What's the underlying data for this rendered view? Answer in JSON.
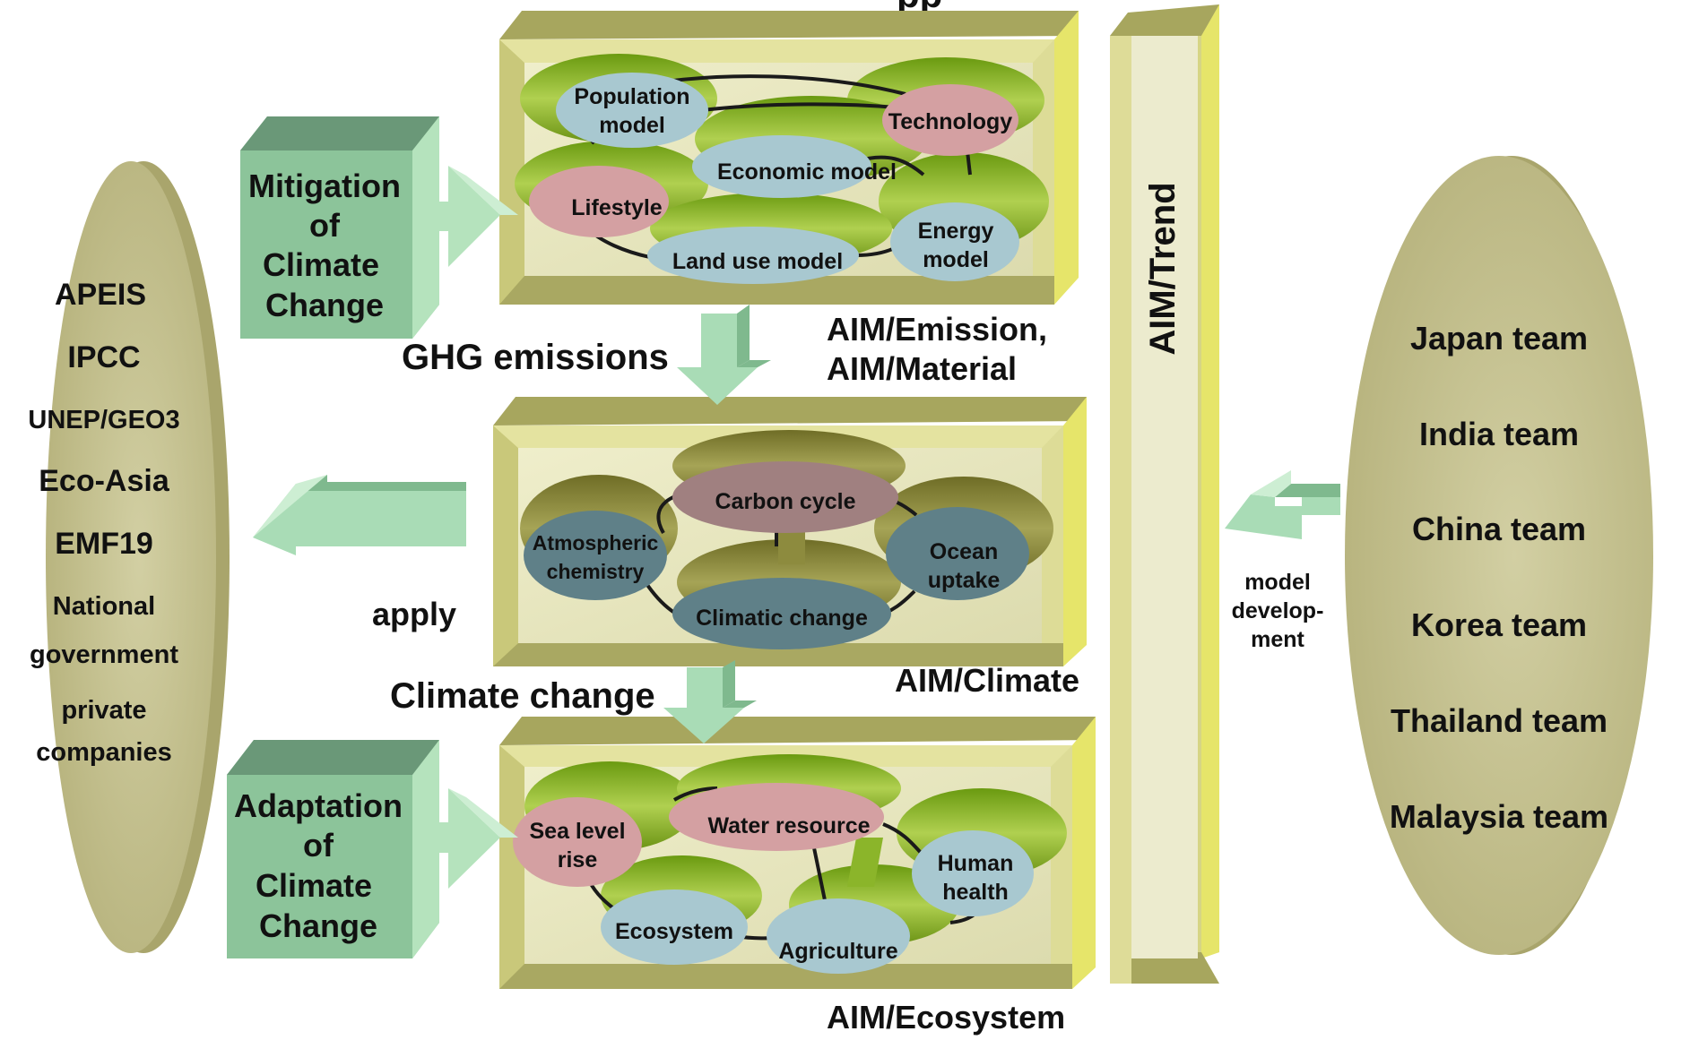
{
  "title": "pp",
  "left_stakeholders": [
    "APEIS",
    "IPCC",
    "UNEP/GEO3",
    "Eco-Asia",
    "EMF19",
    "National",
    "government",
    "private",
    "companies"
  ],
  "right_teams": [
    "Japan team",
    "India team",
    "China team",
    "Korea team",
    "Thailand team",
    "Malaysia team"
  ],
  "mitigation": [
    "Mitigation",
    "of",
    "Climate",
    "Change"
  ],
  "adaptation": [
    "Adaptation",
    "of",
    "Climate",
    "Change"
  ],
  "flows": {
    "ghg": "GHG emissions",
    "climate_change": "Climate change",
    "apply": "apply",
    "model_development": [
      "model",
      "develop-",
      "ment"
    ]
  },
  "trend_label": "AIM/Trend",
  "emission_box": {
    "labels": [
      "AIM/Emission,",
      "AIM/Material"
    ],
    "nodes": {
      "population": [
        "Population",
        "model"
      ],
      "technology": "Technology",
      "economic": "Economic model",
      "lifestyle": "Lifestyle",
      "energy": [
        "Energy",
        "model"
      ],
      "landuse": "Land use model"
    }
  },
  "climate_box": {
    "label": "AIM/Climate",
    "nodes": {
      "carbon": "Carbon cycle",
      "atmos": [
        "Atmospheric",
        "chemistry"
      ],
      "ocean": [
        "Ocean",
        "uptake"
      ],
      "climatic": "Climatic change"
    }
  },
  "ecosystem_box": {
    "label": "AIM/Ecosystem",
    "nodes": {
      "sealevel": [
        "Sea level",
        "rise"
      ],
      "water": "Water resource",
      "human": [
        "Human",
        "health"
      ],
      "ecosystem": "Ecosystem",
      "agriculture": "Agriculture"
    }
  },
  "colors": {
    "frame_light": "#e4e3a0",
    "frame_dark": "#a7a65e",
    "panel": "#ecebc4",
    "green_shape": "#7fa620",
    "olive_shape": "#8c8a3a",
    "node_blue": "#a8c8d0",
    "node_pink": "#d4a0a2",
    "node_teal": "#5f8088",
    "node_mauve": "#a08080",
    "cube_front": "#8cc49a",
    "cube_side": "#b5e3bd",
    "cube_top": "#6a9878",
    "arrow_green": "#a9dcb6",
    "disc": "#c6c392"
  }
}
